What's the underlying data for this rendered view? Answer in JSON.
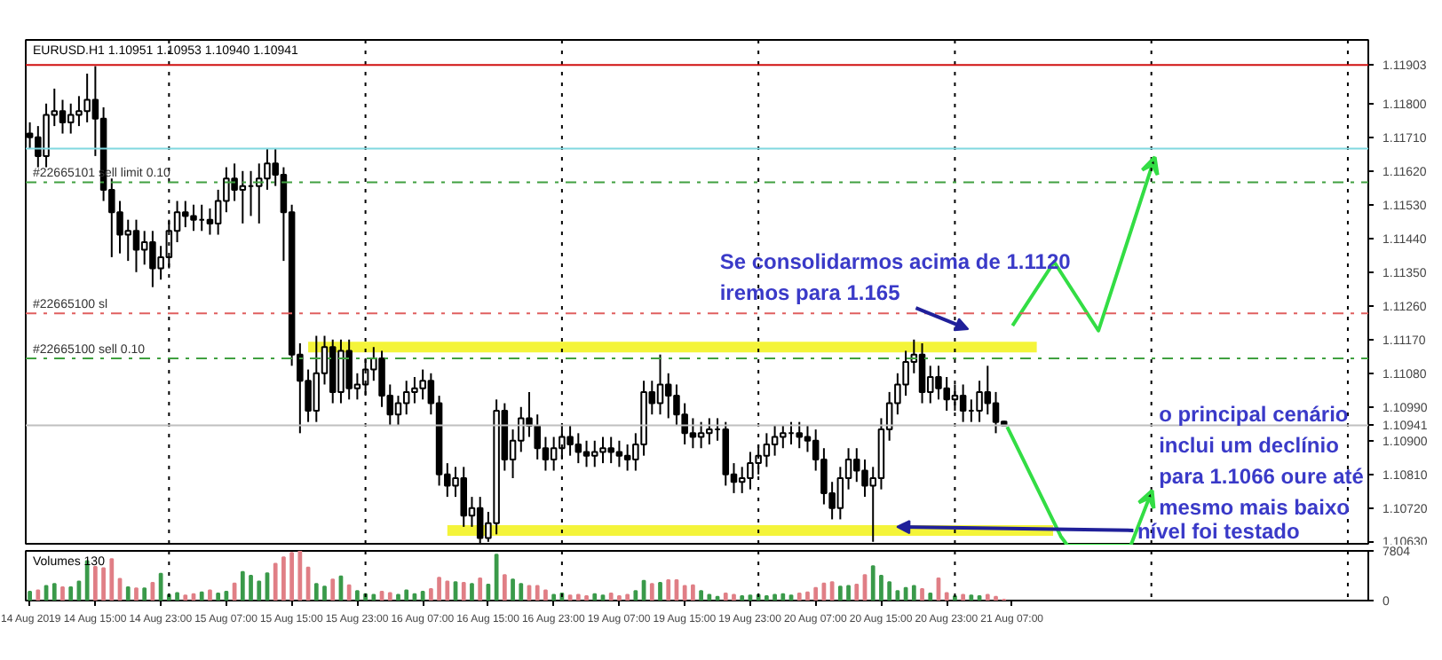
{
  "chart_data": [
    {
      "type": "candlestick",
      "title": "EURUSD.H1  1.10951 1.10953 1.10940 1.10941",
      "categories": [
        null,
        null,
        null,
        null,
        null,
        null,
        null,
        null,
        null,
        null,
        null,
        null,
        null,
        null,
        null,
        null,
        null,
        null,
        null,
        null,
        null,
        null,
        null,
        null,
        null,
        null,
        null,
        null,
        null,
        null,
        null,
        null,
        null,
        null,
        null,
        null,
        null,
        null,
        null,
        null,
        null,
        null,
        null,
        null,
        null,
        null,
        null,
        null,
        null,
        null,
        null,
        null,
        null,
        null,
        null,
        null,
        null,
        null,
        null,
        null,
        null,
        null,
        null,
        null,
        null,
        null,
        null,
        null,
        null,
        null,
        null,
        null,
        null,
        null,
        null,
        null,
        null,
        null,
        null,
        null,
        null,
        null,
        null,
        null,
        null,
        null,
        null,
        null,
        null,
        null,
        null,
        null,
        null,
        null,
        null,
        null,
        null,
        null,
        null,
        null,
        null,
        null,
        null,
        null,
        null,
        null,
        null,
        null,
        null,
        null,
        null,
        null,
        null,
        null,
        null,
        null,
        null,
        null,
        null,
        null,
        null,
        null,
        null,
        null,
        null,
        null,
        null,
        null,
        null,
        null,
        null,
        null,
        null,
        null,
        null,
        null,
        null,
        null,
        null,
        null,
        null,
        null,
        null,
        null,
        null,
        null,
        null,
        null,
        null,
        null,
        null,
        null,
        null,
        null,
        null,
        null,
        null,
        null,
        null,
        null,
        null,
        null,
        null,
        null
      ],
      "ohlc": [
        [
          1.1172,
          1.1175,
          1.1168,
          1.1171
        ],
        [
          1.1171,
          1.1174,
          1.1163,
          1.1166
        ],
        [
          1.1166,
          1.118,
          1.1163,
          1.1177
        ],
        [
          1.1177,
          1.1184,
          1.1174,
          1.1178
        ],
        [
          1.1178,
          1.1181,
          1.1172,
          1.1175
        ],
        [
          1.1175,
          1.118,
          1.1172,
          1.1177
        ],
        [
          1.1177,
          1.1182,
          1.1174,
          1.1178
        ],
        [
          1.1178,
          1.1188,
          1.1175,
          1.1181
        ],
        [
          1.1181,
          1.119,
          1.1166,
          1.1176
        ],
        [
          1.1176,
          1.1179,
          1.1154,
          1.1157
        ],
        [
          1.1157,
          1.116,
          1.1139,
          1.1151
        ],
        [
          1.1151,
          1.1154,
          1.114,
          1.1145
        ],
        [
          1.1145,
          1.1149,
          1.1138,
          1.1146
        ],
        [
          1.1146,
          1.1149,
          1.1135,
          1.1141
        ],
        [
          1.1141,
          1.1146,
          1.1137,
          1.1143
        ],
        [
          1.1143,
          1.1146,
          1.1131,
          1.1136
        ],
        [
          1.1136,
          1.1142,
          1.1133,
          1.1139
        ],
        [
          1.1139,
          1.1149,
          1.1136,
          1.1146
        ],
        [
          1.1146,
          1.1154,
          1.1143,
          1.1151
        ],
        [
          1.1151,
          1.1154,
          1.1147,
          1.115
        ],
        [
          1.115,
          1.1153,
          1.1146,
          1.1149
        ],
        [
          1.1149,
          1.1153,
          1.1146,
          1.1149
        ],
        [
          1.1149,
          1.1152,
          1.1145,
          1.1148
        ],
        [
          1.1148,
          1.1157,
          1.1145,
          1.1154
        ],
        [
          1.1154,
          1.1163,
          1.1151,
          1.116
        ],
        [
          1.116,
          1.1164,
          1.1154,
          1.1157
        ],
        [
          1.1157,
          1.1162,
          1.1148,
          1.1158
        ],
        [
          1.1158,
          1.1162,
          1.115,
          1.1158
        ],
        [
          1.1158,
          1.1164,
          1.1148,
          1.116
        ],
        [
          1.116,
          1.1168,
          1.1157,
          1.1164
        ],
        [
          1.1164,
          1.1168,
          1.1158,
          1.1161
        ],
        [
          1.1161,
          1.1163,
          1.1138,
          1.1151
        ],
        [
          1.1151,
          1.1153,
          1.111,
          1.1113
        ],
        [
          1.1113,
          1.1116,
          1.1092,
          1.1106
        ],
        [
          1.1106,
          1.1109,
          1.1095,
          1.1098
        ],
        [
          1.1098,
          1.1118,
          1.1095,
          1.1108
        ],
        [
          1.1108,
          1.1118,
          1.1105,
          1.1115
        ],
        [
          1.1115,
          1.1117,
          1.11,
          1.1103
        ],
        [
          1.1103,
          1.1117,
          1.11,
          1.1114
        ],
        [
          1.1114,
          1.1117,
          1.1101,
          1.1104
        ],
        [
          1.1104,
          1.1108,
          1.1101,
          1.1105
        ],
        [
          1.1105,
          1.1112,
          1.1102,
          1.1109
        ],
        [
          1.1109,
          1.1115,
          1.1106,
          1.1112
        ],
        [
          1.1112,
          1.1114,
          1.1099,
          1.1102
        ],
        [
          1.1102,
          1.1105,
          1.1094,
          1.1097
        ],
        [
          1.1097,
          1.1102,
          1.1094,
          1.11
        ],
        [
          1.11,
          1.1106,
          1.1097,
          1.1103
        ],
        [
          1.1103,
          1.1107,
          1.11,
          1.1104
        ],
        [
          1.1104,
          1.1109,
          1.1101,
          1.1106
        ],
        [
          1.1106,
          1.1108,
          1.1097,
          1.11
        ],
        [
          1.11,
          1.1102,
          1.1078,
          1.1081
        ],
        [
          1.1081,
          1.1084,
          1.1075,
          1.1078
        ],
        [
          1.1078,
          1.1083,
          1.1075,
          1.108
        ],
        [
          1.108,
          1.1083,
          1.1067,
          1.107
        ],
        [
          1.107,
          1.1075,
          1.1067,
          1.1072
        ],
        [
          1.1072,
          1.1075,
          1.1061,
          1.1064
        ],
        [
          1.1064,
          1.1071,
          1.1063,
          1.1068
        ],
        [
          1.1068,
          1.1101,
          1.1065,
          1.1098
        ],
        [
          1.1098,
          1.11,
          1.1082,
          1.1085
        ],
        [
          1.1085,
          1.1093,
          1.108,
          1.109
        ],
        [
          1.109,
          1.1099,
          1.1087,
          1.1096
        ],
        [
          1.1096,
          1.1103,
          1.1091,
          1.1094
        ],
        [
          1.1094,
          1.1097,
          1.1085,
          1.1088
        ],
        [
          1.1088,
          1.1091,
          1.1082,
          1.1085
        ],
        [
          1.1085,
          1.1091,
          1.1082,
          1.1088
        ],
        [
          1.1088,
          1.1094,
          1.1085,
          1.1091
        ],
        [
          1.1091,
          1.1094,
          1.1086,
          1.1089
        ],
        [
          1.1089,
          1.1092,
          1.1084,
          1.1087
        ],
        [
          1.1087,
          1.109,
          1.1083,
          1.1086
        ],
        [
          1.1086,
          1.109,
          1.1083,
          1.1087
        ],
        [
          1.1087,
          1.1091,
          1.1084,
          1.1088
        ],
        [
          1.1088,
          1.1091,
          1.1084,
          1.1087
        ],
        [
          1.1087,
          1.109,
          1.1083,
          1.1086
        ],
        [
          1.1086,
          1.1089,
          1.1082,
          1.1085
        ],
        [
          1.1085,
          1.1092,
          1.1082,
          1.1089
        ],
        [
          1.1089,
          1.1106,
          1.1086,
          1.1103
        ],
        [
          1.1103,
          1.1106,
          1.1097,
          1.11
        ],
        [
          1.11,
          1.1113,
          1.1097,
          1.1105
        ],
        [
          1.1105,
          1.1108,
          1.1096,
          1.1102
        ],
        [
          1.1102,
          1.1105,
          1.1094,
          1.1097
        ],
        [
          1.1097,
          1.11,
          1.1089,
          1.1092
        ],
        [
          1.1092,
          1.1096,
          1.1088,
          1.1091
        ],
        [
          1.1091,
          1.1095,
          1.1088,
          1.1092
        ],
        [
          1.1092,
          1.1096,
          1.1089,
          1.1093
        ],
        [
          1.1093,
          1.1096,
          1.109,
          1.1093
        ],
        [
          1.1093,
          1.1095,
          1.1078,
          1.1081
        ],
        [
          1.1081,
          1.1084,
          1.1076,
          1.1079
        ],
        [
          1.1079,
          1.1083,
          1.1076,
          1.108
        ],
        [
          1.108,
          1.1087,
          1.1077,
          1.1084
        ],
        [
          1.1084,
          1.1089,
          1.1081,
          1.1086
        ],
        [
          1.1086,
          1.1092,
          1.1083,
          1.1089
        ],
        [
          1.1089,
          1.1094,
          1.1086,
          1.1091
        ],
        [
          1.1091,
          1.1094,
          1.1088,
          1.1092
        ],
        [
          1.1092,
          1.1095,
          1.1089,
          1.1092
        ],
        [
          1.1092,
          1.1095,
          1.1088,
          1.1091
        ],
        [
          1.1091,
          1.1094,
          1.1087,
          1.109
        ],
        [
          1.109,
          1.1093,
          1.1082,
          1.1085
        ],
        [
          1.1085,
          1.1088,
          1.1073,
          1.1076
        ],
        [
          1.1076,
          1.1079,
          1.1069,
          1.1072
        ],
        [
          1.1072,
          1.1083,
          1.1069,
          1.108
        ],
        [
          1.108,
          1.1088,
          1.1077,
          1.1085
        ],
        [
          1.1085,
          1.1088,
          1.1079,
          1.1082
        ],
        [
          1.1082,
          1.1085,
          1.1075,
          1.1078
        ],
        [
          1.1078,
          1.1083,
          1.1063,
          1.108
        ],
        [
          1.108,
          1.1096,
          1.1077,
          1.1093
        ],
        [
          1.1093,
          1.1103,
          1.109,
          1.11
        ],
        [
          1.11,
          1.1108,
          1.1097,
          1.1105
        ],
        [
          1.1105,
          1.1114,
          1.1102,
          1.1111
        ],
        [
          1.1111,
          1.1117,
          1.1108,
          1.1113
        ],
        [
          1.1113,
          1.1116,
          1.11,
          1.1103
        ],
        [
          1.1103,
          1.111,
          1.11,
          1.1107
        ],
        [
          1.1107,
          1.111,
          1.1101,
          1.1104
        ],
        [
          1.1104,
          1.1107,
          1.1098,
          1.1101
        ],
        [
          1.1101,
          1.1105,
          1.1098,
          1.1102
        ],
        [
          1.1102,
          1.1105,
          1.1095,
          1.1098
        ],
        [
          1.1098,
          1.1101,
          1.1095,
          1.1098
        ],
        [
          1.1098,
          1.1106,
          1.1095,
          1.1103
        ],
        [
          1.1103,
          1.111,
          1.1097,
          1.11
        ],
        [
          1.11,
          1.1103,
          1.1092,
          1.1095
        ],
        [
          1.10951,
          1.10953,
          1.1094,
          1.10941
        ],
        null,
        null,
        null,
        null,
        null,
        null,
        null,
        null,
        null,
        null,
        null,
        null,
        null,
        null,
        null,
        null,
        null,
        null,
        null,
        null,
        null,
        null,
        null,
        null,
        null,
        null,
        null,
        null,
        null,
        null,
        null,
        null,
        null,
        null,
        null,
        null,
        null,
        null,
        null,
        null,
        null,
        null,
        null,
        null
      ],
      "series": [
        {
          "type": "line",
          "color": "#f4f43a",
          "values": [
            null,
            null,
            null,
            null,
            null,
            null,
            null,
            null,
            null,
            null,
            null,
            null,
            null,
            null,
            null,
            null,
            null,
            null,
            null,
            null,
            null,
            null,
            null,
            null,
            null,
            null,
            null,
            null,
            null,
            null,
            null,
            null,
            null,
            null,
            1.1115,
            1.1115,
            1.1115,
            1.1115,
            1.1115,
            1.1115,
            1.1115,
            1.1115,
            1.1115,
            1.1115,
            1.1115,
            1.1115,
            1.1115,
            1.1115,
            1.1115,
            1.1115,
            1.1115,
            1.1115,
            1.1115,
            1.1115,
            1.1115,
            1.1115,
            1.1115,
            1.1115,
            1.1115,
            1.1115,
            1.1115,
            1.1115,
            1.1115,
            1.1115,
            1.1115,
            1.1115,
            1.1115,
            1.1115,
            1.1115,
            1.1115,
            1.1115,
            1.1115,
            1.1115,
            1.1115,
            1.1115,
            1.1115,
            1.1115,
            1.1115,
            1.1115,
            1.1115,
            1.1115,
            1.1115,
            1.1115,
            1.1115,
            1.1115,
            1.1115,
            1.1115,
            1.1115,
            1.1115,
            1.1115,
            1.1115,
            1.1115,
            1.1115,
            1.1115,
            1.1115,
            1.1115,
            1.1115,
            1.1115,
            1.1115,
            1.1115,
            1.1115,
            1.1115,
            1.1115,
            1.1115,
            1.1115,
            1.1115,
            1.1115,
            1.1115,
            1.1115,
            1.1115,
            1.1115,
            1.1115,
            1.1115,
            1.1115,
            1.1115,
            1.1115,
            1.1115,
            1.1115,
            1.1115,
            1.1115,
            1.1115,
            1.1115,
            1.1115,
            1.1115,
            null,
            null,
            null,
            null,
            null,
            null,
            null,
            null,
            null,
            null,
            null,
            null,
            null,
            null,
            null,
            null,
            null,
            null,
            null,
            null,
            null,
            null,
            null,
            null,
            null,
            null,
            null,
            null,
            null,
            null,
            null,
            null,
            null,
            null,
            null,
            null,
            null,
            null,
            null,
            null
          ]
        },
        {
          "type": "line",
          "color": "#f4f43a",
          "values": [
            null,
            null,
            null,
            null,
            null,
            null,
            null,
            null,
            null,
            null,
            null,
            null,
            null,
            null,
            null,
            null,
            null,
            null,
            null,
            null,
            null,
            null,
            null,
            null,
            null,
            null,
            null,
            null,
            null,
            null,
            null,
            null,
            null,
            null,
            null,
            null,
            null,
            null,
            null,
            null,
            null,
            null,
            null,
            null,
            null,
            null,
            null,
            null,
            null,
            null,
            null,
            1.1066,
            1.1066,
            1.1066,
            1.1066,
            1.1066,
            1.1066,
            1.1066,
            1.1066,
            1.1066,
            1.1066,
            1.1066,
            1.1066,
            1.1066,
            1.1066,
            1.1066,
            1.1066,
            1.1066,
            1.1066,
            1.1066,
            1.1066,
            1.1066,
            1.1066,
            1.1066,
            1.1066,
            1.1066,
            1.1066,
            1.1066,
            1.1066,
            1.1066,
            1.1066,
            1.1066,
            1.1066,
            1.1066,
            1.1066,
            1.1066,
            1.1066,
            1.1066,
            1.1066,
            1.1066,
            1.1066,
            1.1066,
            1.1066,
            1.1066,
            1.1066,
            1.1066,
            1.1066,
            1.1066,
            1.1066,
            1.1066,
            1.1066,
            1.1066,
            1.1066,
            1.1066,
            1.1066,
            1.1066,
            1.1066,
            1.1066,
            1.1066,
            1.1066,
            1.1066,
            1.1066,
            1.1066,
            1.1066,
            1.1066,
            1.1066,
            1.1066,
            1.1066,
            1.1066,
            1.1066,
            1.1066,
            1.1066,
            1.1066,
            1.1066,
            1.1066,
            1.1066,
            null,
            null,
            null,
            null,
            null,
            null,
            null,
            null,
            null,
            null,
            null,
            null,
            null,
            null,
            null,
            null,
            null,
            null,
            null,
            null,
            null,
            null,
            null,
            null,
            null,
            null,
            null,
            null,
            null,
            null,
            null,
            null,
            null,
            null,
            null,
            null,
            null,
            null
          ]
        }
      ],
      "ylim": [
        1.1062,
        1.1197
      ],
      "yticks": [
        {
          "value": 1.1063,
          "label": "1.10630"
        },
        {
          "value": 1.1072,
          "label": "1.10720"
        },
        {
          "value": 1.1081,
          "label": "1.10810"
        },
        {
          "value": 1.109,
          "label": "1.10900"
        },
        {
          "value": 1.1099,
          "label": "1.10990"
        },
        {
          "value": 1.1108,
          "label": "1.11080"
        },
        {
          "value": 1.1117,
          "label": "1.11170"
        },
        {
          "value": 1.1126,
          "label": "1.11260"
        },
        {
          "value": 1.1135,
          "label": "1.11350"
        },
        {
          "value": 1.1144,
          "label": "1.11440"
        },
        {
          "value": 1.1153,
          "label": "1.11530"
        },
        {
          "value": 1.1162,
          "label": "1.11620"
        },
        {
          "value": 1.1171,
          "label": "1.11710"
        },
        {
          "value": 1.118,
          "label": "1.11800"
        }
      ],
      "tick_labels": "y",
      "ref_lines": [
        {
          "axis": "y",
          "value": 1.11903,
          "label": "1.11903",
          "color": "#d01010",
          "line_style": "solid"
        },
        {
          "axis": "y",
          "value": 1.1168,
          "label": null,
          "color": "#80d8e0",
          "line_style": "solid"
        },
        {
          "axis": "y",
          "value": 1.1159,
          "label": "#22665101 sell limit 0.10",
          "color": "#40a040",
          "line_style": "dashdot"
        },
        {
          "axis": "y",
          "value": 1.1124,
          "label": "#22665100 sl",
          "color": "#e06060",
          "line_style": "dashdot"
        },
        {
          "axis": "y",
          "value": 1.1112,
          "label": "#22665100 sell 0.10",
          "color": "#40a040",
          "line_style": "dashdot"
        },
        {
          "axis": "y",
          "value": 1.10941,
          "label": "1.10941",
          "color": "#c0c0c0",
          "line_style": "solid"
        }
      ],
      "annotations": [
        "Se consolidarmos acima de  1.1120\niremos para 1.165",
        "nível foi testado",
        "o principal cenário\ninclui um declínio\npara 1.1066 oure até\nmesmo mais baixo"
      ]
    },
    {
      "type": "bar",
      "title": "Volumes 130",
      "categories": [
        "14 Aug 2019",
        null,
        null,
        null,
        null,
        null,
        null,
        null,
        "14 Aug 15:00",
        null,
        null,
        null,
        null,
        null,
        null,
        null,
        "14 Aug 23:00",
        null,
        null,
        null,
        null,
        null,
        null,
        null,
        "15 Aug 07:00",
        null,
        null,
        null,
        null,
        null,
        null,
        null,
        "15 Aug 15:00",
        null,
        null,
        null,
        null,
        null,
        null,
        null,
        "15 Aug 23:00",
        null,
        null,
        null,
        null,
        null,
        null,
        null,
        "16 Aug 07:00",
        null,
        null,
        null,
        null,
        null,
        null,
        null,
        "16 Aug 15:00",
        null,
        null,
        null,
        null,
        null,
        null,
        null,
        "16 Aug 23:00",
        null,
        null,
        null,
        null,
        null,
        null,
        null,
        "19 Aug 07:00",
        null,
        null,
        null,
        null,
        null,
        null,
        null,
        "19 Aug 15:00",
        null,
        null,
        null,
        null,
        null,
        null,
        null,
        "19 Aug 23:00",
        null,
        null,
        null,
        null,
        null,
        null,
        null,
        "20 Aug 07:00",
        null,
        null,
        null,
        null,
        null,
        null,
        null,
        "20 Aug 15:00",
        null,
        null,
        null,
        null,
        null,
        null,
        null,
        "20 Aug 23:00",
        null,
        null,
        null,
        null,
        null,
        null,
        null,
        "21 Aug 07:00",
        null,
        null,
        null,
        null,
        null,
        null,
        null,
        null,
        null,
        null,
        null,
        null,
        null,
        null,
        null,
        null,
        null,
        null,
        null,
        null,
        null,
        null,
        null,
        null,
        null,
        null,
        null,
        null,
        null,
        null,
        null,
        null,
        null,
        null,
        null,
        null,
        null,
        null,
        null,
        null,
        null,
        null,
        null
      ],
      "values": [
        1400,
        1600,
        2300,
        2600,
        2100,
        2100,
        3000,
        6200,
        5300,
        5100,
        6500,
        3400,
        2100,
        1900,
        1900,
        2800,
        4200,
        900,
        1200,
        800,
        1000,
        1300,
        1600,
        1100,
        1400,
        2700,
        4500,
        3900,
        3000,
        4300,
        5800,
        6800,
        7500,
        7800,
        5200,
        2600,
        2200,
        3300,
        3800,
        2400,
        1500,
        1000,
        900,
        1400,
        1200,
        900,
        1600,
        1000,
        1400,
        1800,
        3600,
        3000,
        2900,
        2800,
        2600,
        3500,
        2500,
        7200,
        4000,
        3300,
        2600,
        2300,
        2300,
        1600,
        900,
        1100,
        800,
        900,
        700,
        1000,
        800,
        1100,
        700,
        900,
        1500,
        3100,
        2600,
        2800,
        3200,
        3200,
        2300,
        2400,
        1500,
        900,
        600,
        1100,
        900,
        700,
        800,
        900,
        700,
        900,
        1000,
        800,
        1100,
        1300,
        2000,
        2700,
        2900,
        2200,
        2300,
        2500,
        4000,
        5400,
        3900,
        2900,
        1500,
        2000,
        2300,
        1800,
        1100,
        3500,
        1200,
        700,
        900,
        800,
        700,
        900,
        600,
        130,
        null,
        null,
        null,
        null,
        null,
        null,
        null,
        null,
        null,
        null,
        null,
        null,
        null,
        null,
        null,
        null,
        null,
        null,
        null,
        null,
        null,
        null,
        null,
        null,
        null,
        null,
        null,
        null,
        null,
        null,
        null,
        null,
        null,
        null,
        null,
        null,
        null,
        null,
        null,
        null,
        null,
        null,
        null,
        null
      ],
      "colors": [
        "#3a9a4a",
        "#e07f86",
        "#3a9a4a",
        "#3a9a4a",
        "#e07f86",
        "#3a9a4a",
        "#3a9a4a",
        "#3a9a4a",
        "#e07f86",
        "#e07f86",
        "#e07f86",
        "#e07f86",
        "#3a9a4a",
        "#e07f86",
        "#3a9a4a",
        "#e07f86",
        "#3a9a4a",
        "#3a9a4a",
        "#3a9a4a",
        "#e07f86",
        "#e07f86",
        "#3a9a4a",
        "#e07f86",
        "#3a9a4a",
        "#3a9a4a",
        "#e07f86",
        "#3a9a4a",
        "#3a9a4a",
        "#3a9a4a",
        "#3a9a4a",
        "#e07f86",
        "#e07f86",
        "#e07f86",
        "#e07f86",
        "#e07f86",
        "#3a9a4a",
        "#3a9a4a",
        "#e07f86",
        "#3a9a4a",
        "#e07f86",
        "#3a9a4a",
        "#3a9a4a",
        "#3a9a4a",
        "#e07f86",
        "#e07f86",
        "#3a9a4a",
        "#3a9a4a",
        "#3a9a4a",
        "#3a9a4a",
        "#e07f86",
        "#e07f86",
        "#e07f86",
        "#3a9a4a",
        "#e07f86",
        "#3a9a4a",
        "#e07f86",
        "#3a9a4a",
        "#3a9a4a",
        "#e07f86",
        "#3a9a4a",
        "#3a9a4a",
        "#e07f86",
        "#e07f86",
        "#e07f86",
        "#3a9a4a",
        "#3a9a4a",
        "#e07f86",
        "#e07f86",
        "#e07f86",
        "#3a9a4a",
        "#3a9a4a",
        "#e07f86",
        "#e07f86",
        "#e07f86",
        "#3a9a4a",
        "#3a9a4a",
        "#e07f86",
        "#3a9a4a",
        "#e07f86",
        "#e07f86",
        "#e07f86",
        "#e07f86",
        "#3a9a4a",
        "#3a9a4a",
        "#3a9a4a",
        "#e07f86",
        "#e07f86",
        "#3a9a4a",
        "#3a9a4a",
        "#3a9a4a",
        "#3a9a4a",
        "#3a9a4a",
        "#3a9a4a",
        "#3a9a4a",
        "#e07f86",
        "#e07f86",
        "#e07f86",
        "#e07f86",
        "#e07f86",
        "#3a9a4a",
        "#3a9a4a",
        "#e07f86",
        "#e07f86",
        "#3a9a4a",
        "#3a9a4a",
        "#3a9a4a",
        "#3a9a4a",
        "#3a9a4a",
        "#3a9a4a",
        "#e07f86",
        "#3a9a4a",
        "#e07f86",
        "#e07f86",
        "#3a9a4a",
        "#e07f86",
        "#3a9a4a",
        "#3a9a4a",
        "#e07f86",
        "#e07f86",
        "#e07f86",
        null,
        null,
        null,
        null,
        null,
        null,
        null,
        null,
        null,
        null,
        null,
        null,
        null,
        null,
        null,
        null,
        null,
        null,
        null,
        null,
        null,
        null,
        null,
        null,
        null,
        null,
        null,
        null,
        null,
        null,
        null,
        null,
        null,
        null,
        null,
        null,
        null,
        null,
        null,
        null,
        null,
        null,
        null,
        null
      ],
      "ylim": [
        0,
        7804
      ],
      "yticks": [
        0,
        7804
      ]
    }
  ]
}
